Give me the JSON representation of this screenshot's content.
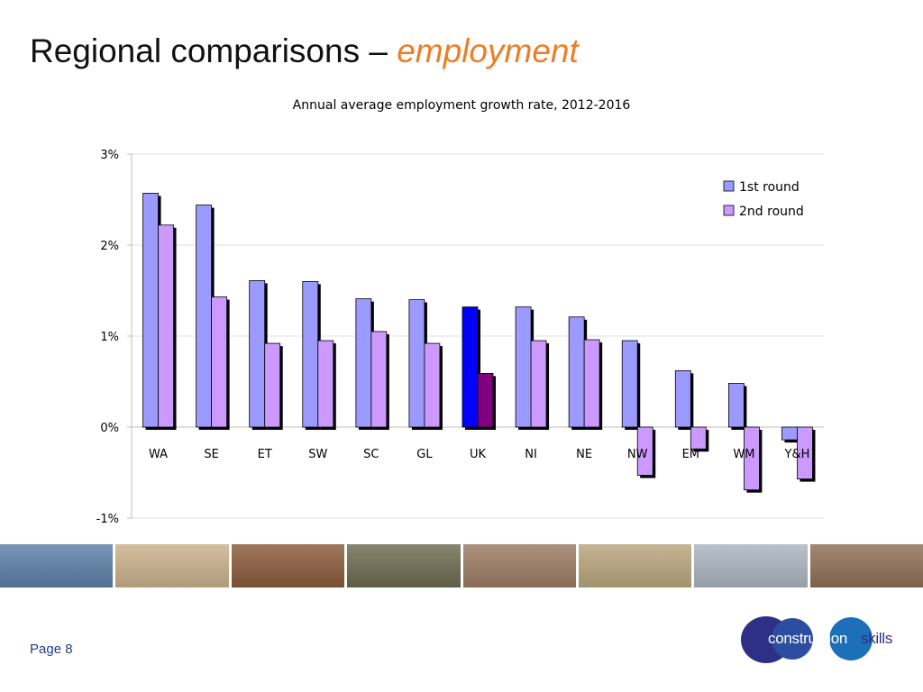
{
  "slide": {
    "title_main": "Regional comparisons – ",
    "title_accent": "employment",
    "page_label": "Page 8"
  },
  "logo": {
    "word_a": "construction",
    "word_b": "skills"
  },
  "colors": {
    "series1": "#9b9bff",
    "series2": "#cc99ff",
    "uk_series1": "#0000ff",
    "uk_series2": "#800080",
    "title_accent": "#ee7d23",
    "page_label": "#1f3c8c"
  },
  "photo_strip": [
    {
      "name": "glass-building-photo",
      "color": "#5b7fa6"
    },
    {
      "name": "businessmen-photo",
      "color": "#c9b08a"
    },
    {
      "name": "construction-worker-photo",
      "color": "#8a5a3a"
    },
    {
      "name": "glass-dome-photo",
      "color": "#6d6a4f"
    },
    {
      "name": "office-team-photo",
      "color": "#9a7a63"
    },
    {
      "name": "excavator-site-photo",
      "color": "#b8a57c"
    },
    {
      "name": "steel-structure-photo",
      "color": "#aab4be"
    },
    {
      "name": "worker-hardhat-photo",
      "color": "#8e6e55"
    }
  ],
  "chart_data": {
    "type": "bar",
    "title": "Annual average employment growth rate, 2012-2016",
    "xlabel": "",
    "ylabel": "",
    "categories": [
      "WA",
      "SE",
      "ET",
      "SW",
      "SC",
      "GL",
      "UK",
      "NI",
      "NE",
      "NW",
      "EM",
      "WM",
      "Y&H"
    ],
    "series": [
      {
        "name": "1st round",
        "values": [
          2.57,
          2.44,
          1.61,
          1.6,
          1.41,
          1.4,
          1.32,
          1.32,
          1.21,
          0.95,
          0.62,
          0.48,
          -0.14
        ]
      },
      {
        "name": "2nd round",
        "values": [
          2.22,
          1.43,
          0.92,
          0.95,
          1.05,
          0.92,
          0.59,
          0.95,
          0.96,
          -0.53,
          -0.24,
          -0.69,
          -0.57
        ]
      }
    ],
    "highlight_category": "UK",
    "ylim": [
      -1,
      3
    ],
    "yticks": [
      -1,
      0,
      1,
      2,
      3
    ],
    "ytick_labels": [
      "-1%",
      "0%",
      "1%",
      "2%",
      "3%"
    ],
    "grid": true,
    "legend_position": "top-right"
  }
}
